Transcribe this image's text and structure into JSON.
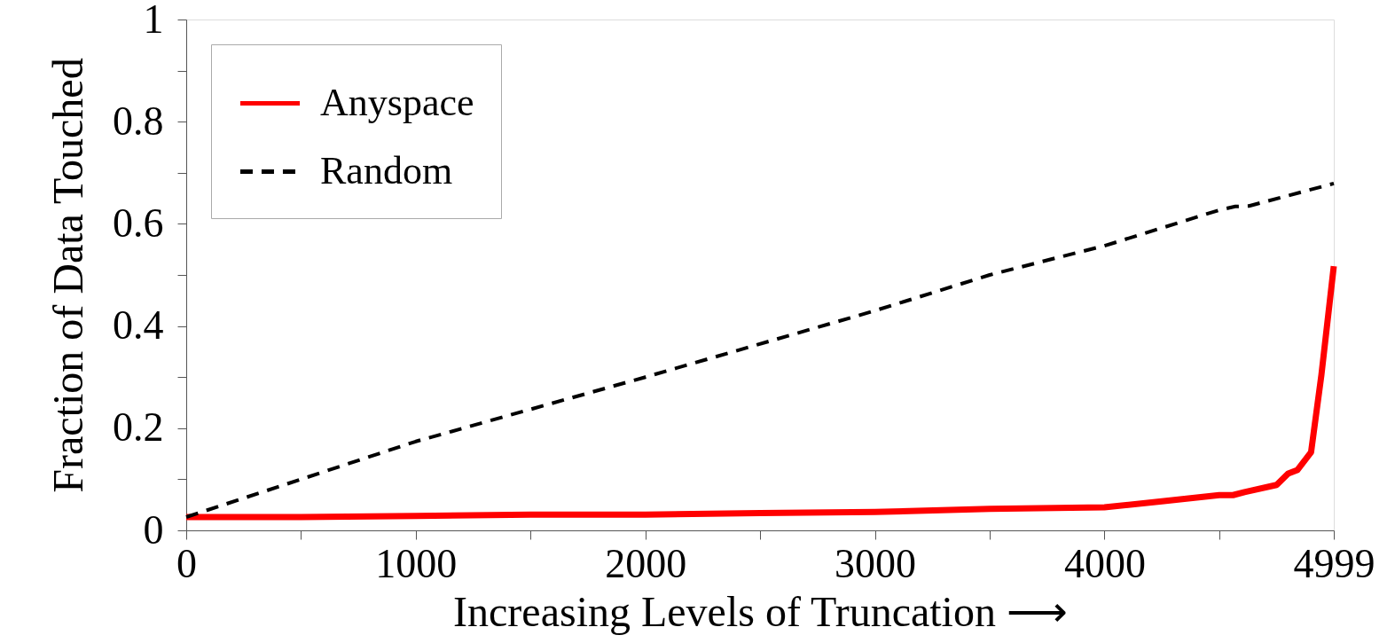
{
  "chart_data": {
    "type": "line",
    "xlabel": "Increasing Levels of Truncation ⟶",
    "ylabel": "Fraction of Data Touched",
    "xlim": [
      0,
      4999
    ],
    "ylim": [
      0,
      1
    ],
    "xticks": [
      0,
      {
        "value": 500,
        "label": null
      },
      1000,
      {
        "value": 1500,
        "label": null
      },
      2000,
      {
        "value": 2500,
        "label": null
      },
      3000,
      {
        "value": 3500,
        "label": null
      },
      4000,
      {
        "value": 4500,
        "label": null
      },
      4999
    ],
    "yticks": [
      0,
      {
        "value": 0.1,
        "label": null
      },
      0.2,
      {
        "value": 0.3,
        "label": null
      },
      0.4,
      {
        "value": 0.5,
        "label": null
      },
      0.6,
      {
        "value": 0.7,
        "label": null
      },
      0.8,
      {
        "value": 0.9,
        "label": null
      },
      1
    ],
    "grid": false,
    "legend": "top left",
    "marker": "none",
    "series": [
      {
        "name": "Anyspace",
        "color": "#ff0000",
        "line_style": "solid",
        "x": [
          0,
          500,
          1000,
          1500,
          2000,
          2500,
          3000,
          3500,
          4000,
          4250,
          4500,
          4560,
          4610,
          4750,
          4800,
          4840,
          4900,
          4945,
          4999
        ],
        "values": [
          0.026,
          0.026,
          0.028,
          0.031,
          0.031,
          0.034,
          0.036,
          0.042,
          0.045,
          0.057,
          0.069,
          0.069,
          0.075,
          0.089,
          0.111,
          0.118,
          0.153,
          0.304,
          0.517
        ]
      },
      {
        "name": "Random",
        "color": "#000000",
        "line_style": "dashed",
        "x": [
          0,
          1000,
          2000,
          3000,
          3500,
          3875,
          4000,
          4500,
          4570,
          4630,
          4999
        ],
        "values": [
          0.026,
          0.174,
          0.3,
          0.43,
          0.5,
          0.543,
          0.557,
          0.627,
          0.634,
          0.635,
          0.679
        ]
      }
    ]
  }
}
